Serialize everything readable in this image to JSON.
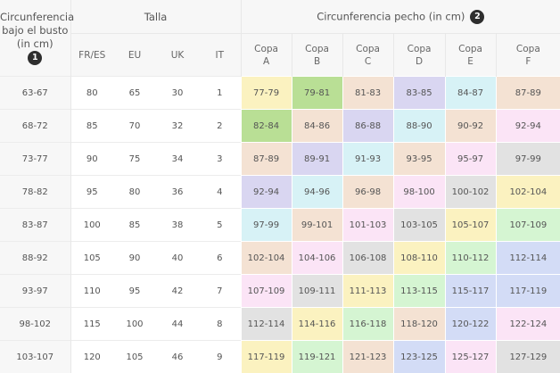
{
  "header": {
    "bust_label": "Circunferencia bajo el busto (in cm)",
    "bust_badge": "1",
    "size_label": "Talla",
    "chest_label": "Circunferencia pecho (in cm)",
    "chest_badge": "2",
    "size_systems": [
      "FR/ES",
      "EU",
      "UK",
      "IT"
    ],
    "cup_prefix": "Copa",
    "cups": [
      "A",
      "B",
      "C",
      "D",
      "E",
      "F"
    ]
  },
  "colors": {
    "green": "#b9df95",
    "yellow": "#fbf2c0",
    "peach": "#f4e2d3",
    "lavender": "#d9d6f1",
    "cyan": "#d7f2f6",
    "pink": "#fbe4f6",
    "grey": "#e2e2e2",
    "mint": "#d5f5d2",
    "blue": "#d3dcf6"
  },
  "rows": [
    {
      "bust": "63-67",
      "sizes": [
        "80",
        "65",
        "30",
        "1"
      ],
      "cups": [
        {
          "v": "77-79",
          "c": "yellow"
        },
        {
          "v": "79-81",
          "c": "green"
        },
        {
          "v": "81-83",
          "c": "peach"
        },
        {
          "v": "83-85",
          "c": "lavender"
        },
        {
          "v": "84-87",
          "c": "cyan"
        },
        {
          "v": "87-89",
          "c": "peach"
        }
      ]
    },
    {
      "bust": "68-72",
      "sizes": [
        "85",
        "70",
        "32",
        "2"
      ],
      "cups": [
        {
          "v": "82-84",
          "c": "green"
        },
        {
          "v": "84-86",
          "c": "peach"
        },
        {
          "v": "86-88",
          "c": "lavender"
        },
        {
          "v": "88-90",
          "c": "cyan"
        },
        {
          "v": "90-92",
          "c": "peach"
        },
        {
          "v": "92-94",
          "c": "pink"
        }
      ]
    },
    {
      "bust": "73-77",
      "sizes": [
        "90",
        "75",
        "34",
        "3"
      ],
      "cups": [
        {
          "v": "87-89",
          "c": "peach"
        },
        {
          "v": "89-91",
          "c": "lavender"
        },
        {
          "v": "91-93",
          "c": "cyan"
        },
        {
          "v": "93-95",
          "c": "peach"
        },
        {
          "v": "95-97",
          "c": "pink"
        },
        {
          "v": "97-99",
          "c": "grey"
        }
      ]
    },
    {
      "bust": "78-82",
      "sizes": [
        "95",
        "80",
        "36",
        "4"
      ],
      "cups": [
        {
          "v": "92-94",
          "c": "lavender"
        },
        {
          "v": "94-96",
          "c": "cyan"
        },
        {
          "v": "96-98",
          "c": "peach"
        },
        {
          "v": "98-100",
          "c": "pink"
        },
        {
          "v": "100-102",
          "c": "grey"
        },
        {
          "v": "102-104",
          "c": "yellow"
        }
      ]
    },
    {
      "bust": "83-87",
      "sizes": [
        "100",
        "85",
        "38",
        "5"
      ],
      "cups": [
        {
          "v": "97-99",
          "c": "cyan"
        },
        {
          "v": "99-101",
          "c": "peach"
        },
        {
          "v": "101-103",
          "c": "pink"
        },
        {
          "v": "103-105",
          "c": "grey"
        },
        {
          "v": "105-107",
          "c": "yellow"
        },
        {
          "v": "107-109",
          "c": "mint"
        }
      ]
    },
    {
      "bust": "88-92",
      "sizes": [
        "105",
        "90",
        "40",
        "6"
      ],
      "cups": [
        {
          "v": "102-104",
          "c": "peach"
        },
        {
          "v": "104-106",
          "c": "pink"
        },
        {
          "v": "106-108",
          "c": "grey"
        },
        {
          "v": "108-110",
          "c": "yellow"
        },
        {
          "v": "110-112",
          "c": "mint"
        },
        {
          "v": "112-114",
          "c": "blue"
        }
      ]
    },
    {
      "bust": "93-97",
      "sizes": [
        "110",
        "95",
        "42",
        "7"
      ],
      "cups": [
        {
          "v": "107-109",
          "c": "pink"
        },
        {
          "v": "109-111",
          "c": "grey"
        },
        {
          "v": "111-113",
          "c": "yellow"
        },
        {
          "v": "113-115",
          "c": "mint"
        },
        {
          "v": "115-117",
          "c": "blue"
        },
        {
          "v": "117-119",
          "c": "blue"
        }
      ]
    },
    {
      "bust": "98-102",
      "sizes": [
        "115",
        "100",
        "44",
        "8"
      ],
      "cups": [
        {
          "v": "112-114",
          "c": "grey"
        },
        {
          "v": "114-116",
          "c": "yellow"
        },
        {
          "v": "116-118",
          "c": "mint"
        },
        {
          "v": "118-120",
          "c": "peach"
        },
        {
          "v": "120-122",
          "c": "blue"
        },
        {
          "v": "122-124",
          "c": "pink"
        }
      ]
    },
    {
      "bust": "103-107",
      "sizes": [
        "120",
        "105",
        "46",
        "9"
      ],
      "cups": [
        {
          "v": "117-119",
          "c": "yellow"
        },
        {
          "v": "119-121",
          "c": "mint"
        },
        {
          "v": "121-123",
          "c": "peach"
        },
        {
          "v": "123-125",
          "c": "blue"
        },
        {
          "v": "125-127",
          "c": "pink"
        },
        {
          "v": "127-129",
          "c": "grey"
        }
      ]
    }
  ]
}
